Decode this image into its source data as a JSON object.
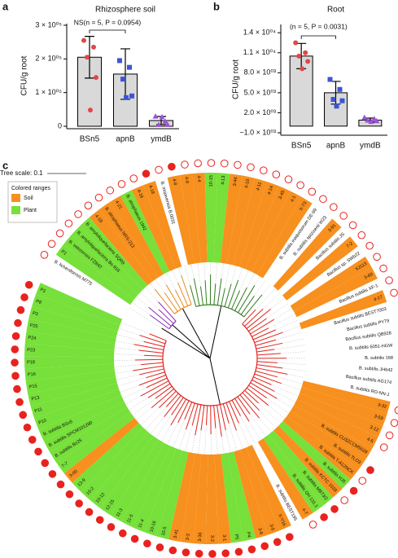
{
  "chart_data": [
    {
      "type": "bar",
      "panel": "a",
      "title": "Rhizosphere soil",
      "annotation": "NS(n = 5, P = 0.0954)",
      "ylabel": "CFU/g root",
      "categories": [
        "BSn5",
        "apnB",
        "ymdB"
      ],
      "values": [
        205000,
        155000,
        17000
      ],
      "errors": [
        62000,
        75000,
        12000
      ],
      "color": "#d9d9d9",
      "points": [
        [
          255000,
          235000,
          205000,
          145000,
          48000
        ],
        [
          195000,
          175000,
          140000,
          90000,
          85000
        ],
        [
          30000,
          15000,
          5000,
          5000,
          28000
        ]
      ],
      "point_colors": [
        "#e04848",
        "#3b55d8",
        "#9b52d6"
      ],
      "point_markers": [
        "circle",
        "square",
        "triangle"
      ],
      "ylim": [
        0,
        300000
      ],
      "yticks": [
        0,
        {
          "value": 100000,
          "label": "1 × 10⁰⁵"
        },
        {
          "value": 200000,
          "label": "2 × 10⁰⁵"
        },
        {
          "value": 300000,
          "label": "3 × 10⁰⁵"
        }
      ]
    },
    {
      "type": "bar",
      "panel": "b",
      "title": "Root",
      "annotation": "(n = 5, P = 0.0031)",
      "ylabel": "CFU/g root",
      "categories": [
        "BSn5",
        "apnB",
        "ymdB"
      ],
      "values": [
        10500,
        5000,
        900
      ],
      "errors": [
        1900,
        1700,
        300
      ],
      "color": "#d9d9d9",
      "points": [
        [
          12500,
          11000,
          10500,
          9700,
          8600
        ],
        [
          7000,
          5500,
          4000,
          3800,
          3000
        ],
        [
          1300,
          1100,
          900,
          800,
          700
        ]
      ],
      "point_colors": [
        "#e04848",
        "#3b55d8",
        "#9b52d6"
      ],
      "point_markers": [
        "circle",
        "square",
        "triangle"
      ],
      "ylim": [
        -1000,
        15000
      ],
      "yticks": [
        {
          "value": -1000,
          "label": "−1.0 × 10⁰³"
        },
        {
          "value": 2000,
          "label": "2.0 × 10⁰³"
        },
        {
          "value": 5000,
          "label": "5.0 × 10⁰³"
        },
        {
          "value": 8000,
          "label": "8.0 × 10⁰³"
        },
        {
          "value": 11000,
          "label": "1.1 × 10⁰⁴"
        },
        {
          "value": 14000,
          "label": "1.4 × 10⁰⁴"
        }
      ]
    }
  ],
  "tree": {
    "panel": "c",
    "scale_label": "Tree scale: 0.1",
    "legend": {
      "title": "Colored ranges",
      "entries": [
        {
          "label": "Soil",
          "color": "#f7901e"
        },
        {
          "label": "Plant",
          "color": "#77e03a"
        }
      ]
    },
    "marker_color": "#e8231f",
    "leaves": [
      [
        "B. licheniformis M775",
        null,
        false
      ],
      [
        "P1",
        "Plant",
        false
      ],
      [
        "B. velezensis FZB42",
        "Plant",
        false
      ],
      [
        "B. amyloliquefaciens Bs-916",
        "Plant",
        false
      ],
      [
        "B. amyloliquefaciens SQR9",
        "Plant",
        false
      ],
      [
        "4-19",
        "Soil",
        false
      ],
      [
        "B. atrophaeus NRS-213",
        "Soil",
        false
      ],
      [
        "4-21",
        "Soil",
        false
      ],
      [
        "B. atrophaeus 1942",
        "Plant",
        false
      ],
      [
        "4-16",
        "Soil",
        false
      ],
      [
        "4-18",
        "Soil",
        true
      ],
      [
        "B. mojavensis B.0031",
        null,
        false
      ],
      [
        "4-8",
        "Soil",
        true
      ],
      [
        "4-9",
        "Soil",
        false
      ],
      [
        "4-4",
        "Soil",
        false
      ],
      [
        "10-15",
        "Plant",
        false
      ],
      [
        "4-13",
        "Plant",
        false
      ],
      [
        "3-44",
        "Soil",
        false
      ],
      [
        "4-10",
        "Soil",
        false
      ],
      [
        "4-11",
        "Soil",
        false
      ],
      [
        "4-14",
        "Soil",
        false
      ],
      [
        "3-45",
        "Soil",
        false
      ],
      [
        "4-1",
        "Soil",
        false
      ],
      [
        "X-73",
        "Soil",
        false
      ],
      [
        "B. subtilis inaquosorum DE-99",
        null,
        false
      ],
      [
        "B. subtilis spizizenii W23",
        null,
        false
      ],
      [
        "3-91",
        "Soil",
        false
      ],
      [
        "Bacillus subtilis JS",
        null,
        false
      ],
      [
        "7-2",
        "Soil",
        false
      ],
      [
        "Bacillus sp. SWb22",
        null,
        false
      ],
      [
        "XJ113",
        "Soil",
        false
      ],
      [
        "3-69",
        "Soil",
        false
      ],
      [
        "Bacillus subtilis XF-1",
        null,
        false
      ],
      [
        "4-17",
        "Soil",
        false
      ],
      [
        "Bacillus subtilis BEST7003",
        null,
        null
      ],
      [
        "Bacillus subtilis PY79",
        null,
        null
      ],
      [
        "Bacillus subtilis QB928",
        null,
        null
      ],
      [
        "B. subtilis 6051-HGW",
        null,
        null
      ],
      [
        "B. subtilis 168",
        null,
        null
      ],
      [
        "B. subtilis JH642",
        null,
        null
      ],
      [
        "Bacillus subtilis AG174",
        null,
        null
      ],
      [
        "B. subtilis RO-NN-1",
        null,
        null
      ],
      [
        "3-32",
        "Soil",
        false
      ],
      [
        "3-59",
        "Soil",
        false
      ],
      [
        "3-12",
        "Soil",
        false
      ],
      [
        "4-5",
        "Soil",
        false
      ],
      [
        "B. subtilis CU3ZCCM5028",
        "Soil",
        null
      ],
      [
        "B. subtilis TLO3",
        "Soil",
        true
      ],
      [
        "B. subtilis T-A12NCK",
        "Soil",
        false
      ],
      [
        "B. subtilis HJ5",
        "Plant",
        true
      ],
      [
        "B. subtilis KCTC 1028",
        "Soil",
        false
      ],
      [
        "B. subtilis MB73/2",
        "Plant",
        true
      ],
      [
        "B. subtilis OH 131.1",
        "Plant",
        true
      ],
      [
        "4-7",
        "Soil",
        false
      ],
      [
        "B. subtilis BEST195",
        null,
        null
      ],
      [
        "X-Y16",
        "Soil",
        true
      ],
      [
        "3-5",
        "Soil",
        true
      ],
      [
        "3-6",
        "Soil",
        true
      ],
      [
        "P4",
        "Plant",
        true
      ],
      [
        "P5",
        "Plant",
        true
      ],
      [
        "3-1",
        "Soil",
        true
      ],
      [
        "3-2",
        "Soil",
        true
      ],
      [
        "3-36",
        "Soil",
        true
      ],
      [
        "3-3",
        "Soil",
        true
      ],
      [
        "3-41",
        "Soil",
        true
      ],
      [
        "10-5",
        "Plant",
        true
      ],
      [
        "10-16",
        "Plant",
        true
      ],
      [
        "11-4",
        "Plant",
        true
      ],
      [
        "11-5",
        "Plant",
        true
      ],
      [
        "11-3",
        "Plant",
        true
      ],
      [
        "12-15",
        "Plant",
        true
      ],
      [
        "10-12",
        "Plant",
        true
      ],
      [
        "10-2",
        "Plant",
        true
      ],
      [
        "13-9",
        "Plant",
        true
      ],
      [
        "3-00",
        "Soil",
        true
      ],
      [
        "7-7",
        "Plant",
        true
      ],
      [
        "B. subtilis Bs26",
        "Plant",
        true
      ],
      [
        "B. subtilis SPCM101280",
        "Plant",
        true
      ],
      [
        "B. subtilis BSn5",
        "Plant",
        true
      ],
      [
        "P10",
        "Plant",
        true
      ],
      [
        "P11",
        "Plant",
        true
      ],
      [
        "P13",
        "Plant",
        true
      ],
      [
        "P15",
        "Plant",
        true
      ],
      [
        "P16",
        "Plant",
        true
      ],
      [
        "P18",
        "Plant",
        true
      ],
      [
        "P23",
        "Plant",
        true
      ],
      [
        "P24",
        "Plant",
        true
      ],
      [
        "P25",
        "Plant",
        true
      ],
      [
        "P3",
        "Plant",
        true
      ],
      [
        "P8",
        "Plant",
        true
      ],
      [
        "P2",
        "Plant",
        true
      ]
    ]
  }
}
